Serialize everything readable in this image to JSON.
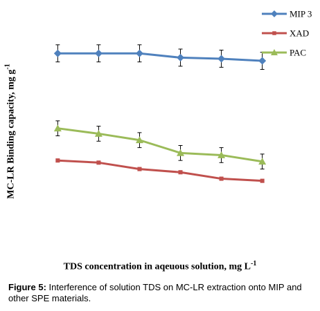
{
  "chart_data": {
    "type": "line",
    "title": "",
    "xlabel": "TDS concentration in aqeuous solution, mg L",
    "xlabel_sup": "-1",
    "ylabel": "MC-LR Binding capacity, mg g",
    "ylabel_sup": "-1",
    "x": [
      1,
      2,
      3,
      4,
      5,
      6
    ],
    "xlim": [
      0.3,
      6.7
    ],
    "ylim": [
      0,
      100
    ],
    "grid": false,
    "axes_visible": false,
    "legend_position": "top-right",
    "series": [
      {
        "name": "MIP 3",
        "color": "#4F81BD",
        "marker": "diamond",
        "values": [
          88,
          88,
          88,
          86,
          85.5,
          84.5
        ],
        "error": [
          4,
          4,
          4,
          4,
          4,
          4
        ]
      },
      {
        "name": "XAD",
        "color": "#C0504D",
        "marker": "square",
        "values": [
          38,
          37,
          34,
          32.5,
          29.5,
          28.5
        ],
        "error": [
          0,
          0,
          0,
          0,
          0,
          0
        ]
      },
      {
        "name": "PAC",
        "color": "#9BBB59",
        "marker": "triangle",
        "values": [
          53,
          50.5,
          47.5,
          41.5,
          40.5,
          37.5
        ],
        "error": [
          3.5,
          3.5,
          3.5,
          3.5,
          3.5,
          3.5
        ]
      }
    ]
  },
  "caption": {
    "label": "Figure 5:",
    "text": " Interference of solution TDS on MC-LR extraction onto MIP and other SPE materials."
  }
}
